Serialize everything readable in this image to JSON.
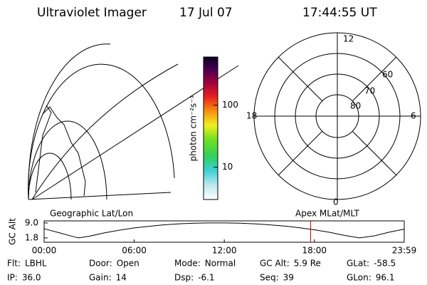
{
  "header": {
    "title": "Ultraviolet Imager",
    "date": "17 Jul 07",
    "time": "17:44:55 UT"
  },
  "colorbar": {
    "label": "photon cm⁻²s⁻¹",
    "scale": "log",
    "lim": [
      3,
      600
    ],
    "ticks": [
      10,
      100
    ]
  },
  "polar": {
    "mlt_labels": [
      "12",
      "18",
      "6",
      "0"
    ],
    "lat_labels": [
      "60",
      "70",
      "80"
    ]
  },
  "chart_data": {
    "type": "line",
    "ylabel": "GC Alt",
    "left_label": "Geographic Lat/Lon",
    "right_label": "Apex MLat/MLT",
    "x": [
      0,
      1,
      2,
      2.3,
      3,
      4,
      5,
      6,
      7,
      8,
      9,
      10,
      11,
      12,
      13,
      14,
      15,
      16,
      17,
      18,
      19,
      20,
      21,
      22,
      23,
      23.983
    ],
    "series": [
      {
        "name": "GC Alt",
        "color": "#000000",
        "values": [
          6.2,
          4.3,
          2.3,
          1.8,
          2.6,
          4.2,
          5.5,
          6.6,
          7.4,
          8.1,
          8.6,
          8.9,
          9.0,
          9.0,
          8.9,
          8.6,
          8.1,
          7.5,
          6.7,
          5.7,
          4.5,
          3.0,
          1.8,
          2.8,
          4.6,
          6.0
        ]
      }
    ],
    "marker_x": 17.749,
    "marker_color": "#cc0000",
    "xlim": [
      0,
      23.983
    ],
    "ylim": [
      -0.3,
      10
    ],
    "xticks": [
      {
        "value": 0,
        "label": "00:00"
      },
      {
        "value": 6,
        "label": "06:00"
      },
      {
        "value": 12,
        "label": "12:00"
      },
      {
        "value": 18,
        "label": "18:00"
      },
      {
        "value": 23.983,
        "label": "23:59"
      }
    ],
    "yticks": [
      1.8,
      {
        "value": 9.0,
        "label": "9.0"
      }
    ]
  },
  "footer": {
    "items": [
      {
        "label": "Flt:",
        "value": "LBHL"
      },
      {
        "label": "IP:",
        "value": "36.0"
      },
      {
        "label": "Door:",
        "value": "Open"
      },
      {
        "label": "Gain:",
        "value": "14"
      },
      {
        "label": "Mode:",
        "value": "Normal"
      },
      {
        "label": "Dsp:",
        "value": "-6.1"
      },
      {
        "label": "GC Alt:",
        "value": "5.9 Re"
      },
      {
        "label": "Seq:",
        "value": "39"
      },
      {
        "label": "GLat:",
        "value": "-58.5"
      },
      {
        "label": "GLon:",
        "value": "96.1"
      }
    ]
  }
}
